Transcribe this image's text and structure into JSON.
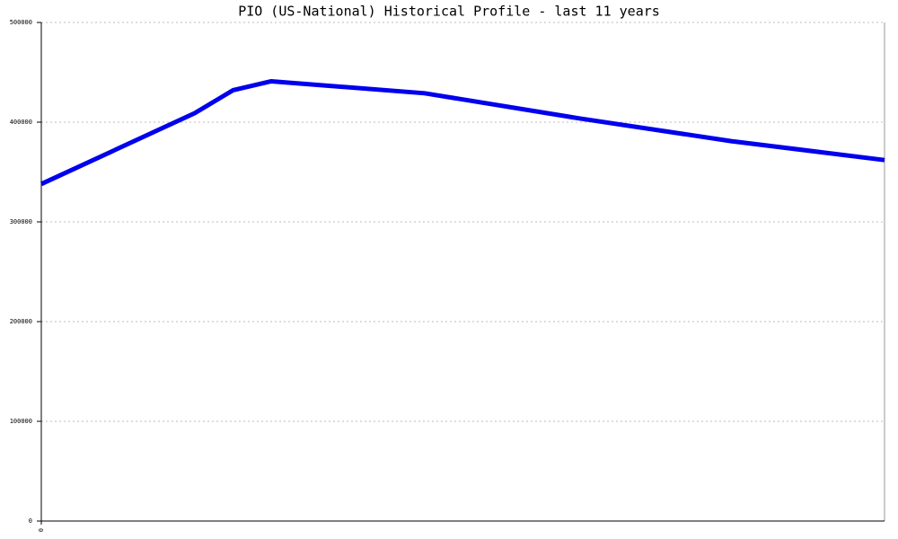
{
  "chart_data": {
    "type": "line",
    "title": "PIO (US-National) Historical Profile - last 11 years",
    "x": [
      0,
      4,
      5,
      6,
      10,
      14,
      18,
      22
    ],
    "series": [
      {
        "name": "PIO",
        "color": "#0000ee",
        "values": [
          338000,
          409000,
          432000,
          441000,
          429000,
          404000,
          381000,
          362000
        ]
      }
    ],
    "xlim": [
      0,
      22
    ],
    "xticks": [
      0
    ],
    "ylim": [
      0,
      500000
    ],
    "yticks": [
      0,
      100000,
      200000,
      300000,
      400000,
      500000
    ],
    "grid": true
  }
}
